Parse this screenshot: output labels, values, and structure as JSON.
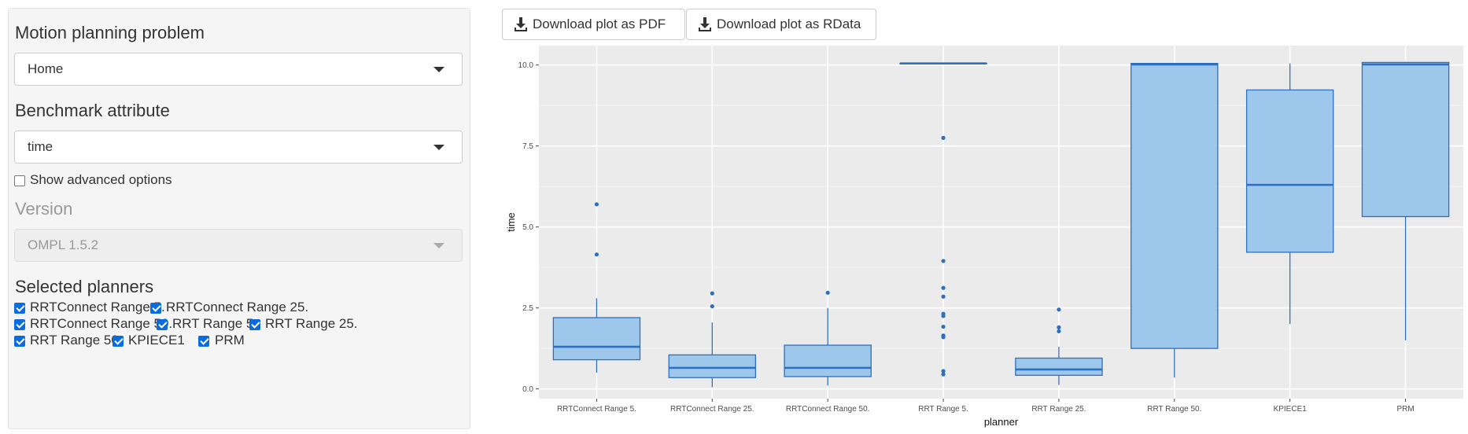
{
  "sidebar": {
    "problem_label": "Motion planning problem",
    "problem_value": "Home",
    "attribute_label": "Benchmark attribute",
    "attribute_value": "time",
    "advanced_label": "Show advanced options",
    "advanced_checked": false,
    "version_label": "Version",
    "version_value": "OMPL 1.5.2",
    "planners_label": "Selected planners",
    "planners": [
      {
        "label": "RRTConnect Range 5.",
        "checked": true
      },
      {
        "label": "RRTConnect Range 25.",
        "checked": true
      },
      {
        "label": "RRTConnect Range 50.",
        "checked": true
      },
      {
        "label": "RRT Range 5.",
        "checked": true
      },
      {
        "label": "RRT Range 25.",
        "checked": true
      },
      {
        "label": "RRT Range 50.",
        "checked": true
      },
      {
        "label": "KPIECE1",
        "checked": true
      },
      {
        "label": "PRM",
        "checked": true
      }
    ]
  },
  "toolbar": {
    "pdf_label": "Download plot as PDF",
    "rdata_label": "Download plot as RData"
  },
  "colors": {
    "box_fill": "#9dc8ec",
    "box_stroke": "#2e6fbe",
    "panel_bg": "#ebebeb",
    "grid": "#ffffff"
  },
  "chart_data": {
    "type": "box",
    "xlabel": "planner",
    "ylabel": "time",
    "ylim": [
      -0.3,
      10.6
    ],
    "yticks": [
      0.0,
      2.5,
      5.0,
      7.5,
      10.0
    ],
    "ytick_labels": [
      "0.0",
      "2.5",
      "5.0",
      "7.5",
      "10.0"
    ],
    "grid": true,
    "categories": [
      "RRTConnect Range 5.",
      "RRTConnect Range 25.",
      "RRTConnect Range 50.",
      "RRT Range 5.",
      "RRT Range 25.",
      "RRT Range 50.",
      "KPIECE1",
      "PRM"
    ],
    "boxes": [
      {
        "lower_whisker": 0.5,
        "q1": 0.9,
        "median": 1.3,
        "q3": 2.2,
        "upper_whisker": 2.8,
        "outliers": [
          4.15,
          5.7
        ]
      },
      {
        "lower_whisker": 0.05,
        "q1": 0.35,
        "median": 0.65,
        "q3": 1.05,
        "upper_whisker": 2.05,
        "outliers": [
          2.55,
          2.95
        ]
      },
      {
        "lower_whisker": 0.1,
        "q1": 0.38,
        "median": 0.65,
        "q3": 1.35,
        "upper_whisker": 2.5,
        "outliers": [
          2.97
        ]
      },
      {
        "lower_whisker": 10.05,
        "q1": 10.05,
        "median": 10.05,
        "q3": 10.05,
        "upper_whisker": 10.05,
        "outliers": [
          0.45,
          0.55,
          1.6,
          1.65,
          1.92,
          2.25,
          2.32,
          2.85,
          3.12,
          3.95,
          7.75
        ]
      },
      {
        "lower_whisker": 0.12,
        "q1": 0.42,
        "median": 0.6,
        "q3": 0.95,
        "upper_whisker": 1.3,
        "outliers": [
          1.78,
          1.9,
          2.45
        ]
      },
      {
        "lower_whisker": 0.35,
        "q1": 1.25,
        "median": 10.02,
        "q3": 10.05,
        "upper_whisker": 10.05,
        "outliers": []
      },
      {
        "lower_whisker": 2.0,
        "q1": 4.22,
        "median": 6.3,
        "q3": 9.23,
        "upper_whisker": 10.05,
        "outliers": []
      },
      {
        "lower_whisker": 1.5,
        "q1": 5.32,
        "median": 10.02,
        "q3": 10.08,
        "upper_whisker": 10.1,
        "outliers": []
      }
    ]
  }
}
